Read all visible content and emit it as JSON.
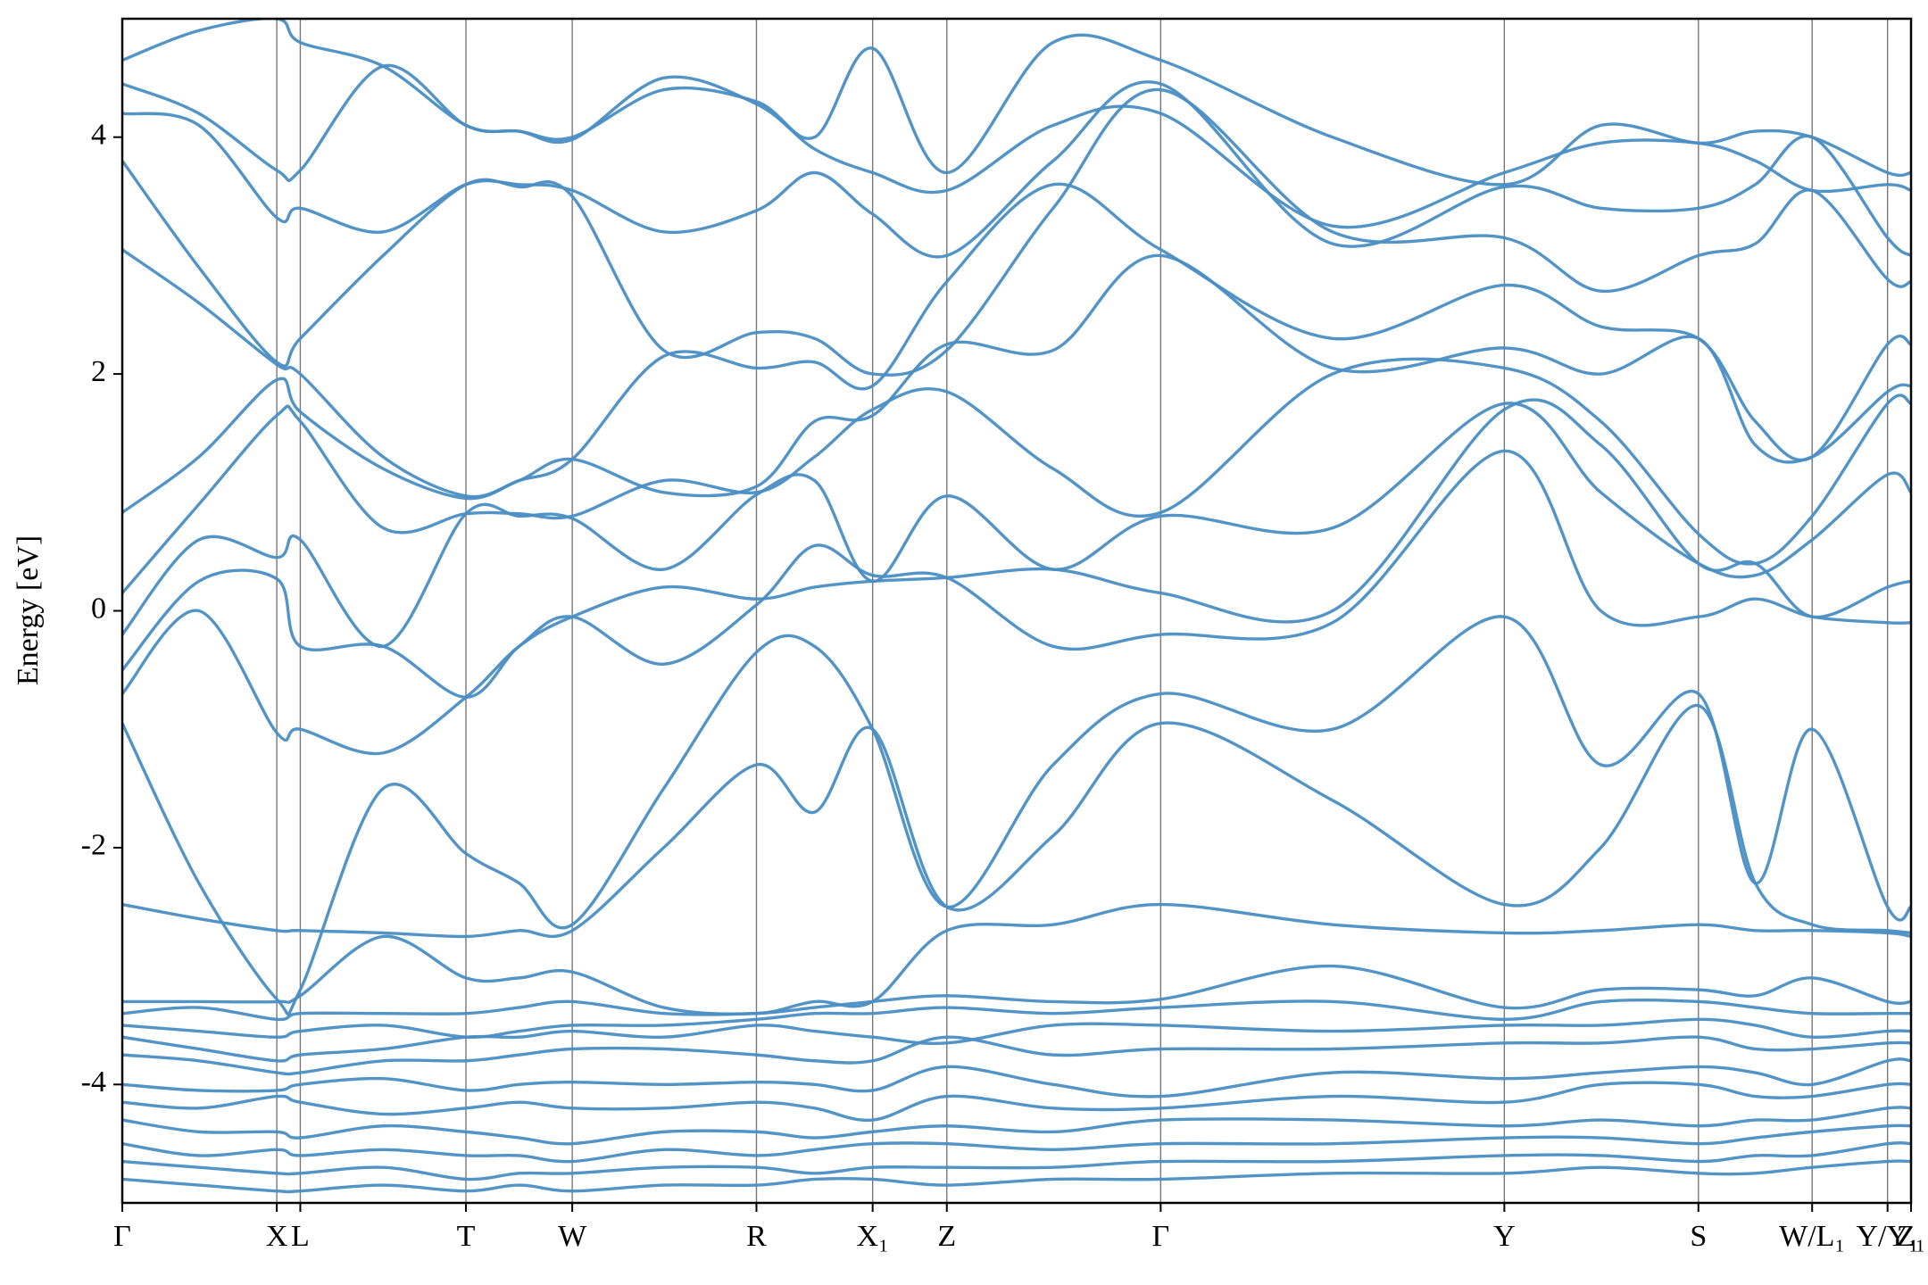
{
  "chart_data": {
    "type": "line",
    "ylabel": "Energy [eV]",
    "color": "#4a8ec4",
    "x": [
      0,
      0.62,
      1.25,
      1.44,
      2.11,
      2.78,
      3.21,
      3.64,
      4.38,
      5.13,
      5.6,
      6.07,
      6.67,
      7.53,
      8.4,
      9.79,
      11.18,
      11.96,
      12.75,
      13.21,
      13.67,
      14.28,
      14.47
    ],
    "xlim": [
      0,
      14.47
    ],
    "xticks": [
      {
        "value": 0,
        "label": "Γ"
      },
      {
        "value": 1.25,
        "label": "X"
      },
      {
        "value": 1.44,
        "label": "L"
      },
      {
        "value": 2.78,
        "label": "T"
      },
      {
        "value": 3.64,
        "label": "W"
      },
      {
        "value": 5.13,
        "label": "R"
      },
      {
        "value": 6.07,
        "label": "X₁"
      },
      {
        "value": 6.67,
        "label": "Z"
      },
      {
        "value": 8.4,
        "label": "Γ"
      },
      {
        "value": 11.18,
        "label": "Y"
      },
      {
        "value": 12.75,
        "label": "S"
      },
      {
        "value": 13.67,
        "label": "W/L₁"
      },
      {
        "value": 14.28,
        "label": "Y/Y₁"
      },
      {
        "value": 14.47,
        "label": "Z₁"
      }
    ],
    "ylim": [
      -5,
      5
    ],
    "yticks": [
      -4,
      -2,
      0,
      2,
      4
    ],
    "series": [
      {
        "values": [
          4.65,
          4.9,
          5.0,
          4.8,
          4.6,
          4.1,
          4.05,
          4.0,
          4.4,
          4.3,
          4.0,
          4.75,
          3.7,
          4.8,
          4.65,
          4.0,
          3.6,
          4.1,
          3.95,
          4.05,
          4.0,
          3.7,
          3.7
        ]
      },
      {
        "values": [
          4.45,
          4.2,
          3.72,
          3.72,
          4.6,
          4.1,
          4.05,
          3.98,
          4.5,
          4.28,
          3.9,
          3.7,
          3.55,
          4.1,
          4.2,
          3.25,
          3.7,
          3.95,
          3.95,
          3.8,
          3.55,
          3.6,
          3.55
        ]
      },
      {
        "values": [
          4.2,
          4.1,
          3.32,
          3.4,
          3.2,
          3.6,
          3.6,
          3.55,
          3.2,
          3.38,
          3.7,
          3.35,
          3.0,
          3.8,
          4.45,
          3.1,
          3.58,
          3.4,
          3.4,
          3.6,
          4.0,
          3.15,
          3.0
        ]
      },
      {
        "values": [
          3.8,
          2.9,
          2.1,
          2.3,
          3.0,
          3.6,
          3.58,
          3.5,
          2.2,
          2.35,
          2.3,
          2.0,
          2.2,
          3.4,
          4.4,
          3.2,
          3.15,
          2.7,
          3.0,
          3.1,
          3.55,
          2.8,
          2.78
        ]
      },
      {
        "values": [
          3.05,
          2.6,
          2.08,
          2.0,
          1.3,
          0.97,
          1.1,
          1.28,
          2.15,
          2.05,
          2.1,
          1.9,
          2.78,
          3.6,
          3.05,
          2.3,
          2.75,
          2.4,
          2.3,
          1.6,
          1.3,
          2.25,
          2.25
        ]
      },
      {
        "values": [
          0.83,
          1.3,
          1.95,
          1.68,
          1.2,
          0.95,
          1.1,
          1.28,
          1.0,
          1.05,
          1.6,
          1.65,
          2.25,
          2.2,
          3.0,
          2.05,
          2.22,
          2.0,
          2.3,
          1.4,
          1.3,
          1.85,
          1.9
        ]
      },
      {
        "values": [
          0.15,
          0.9,
          1.65,
          1.6,
          0.7,
          0.82,
          0.82,
          0.8,
          1.1,
          1.0,
          1.3,
          1.7,
          1.85,
          1.2,
          0.83,
          2.0,
          2.05,
          1.6,
          0.65,
          0.4,
          0.8,
          1.75,
          1.75
        ]
      },
      {
        "values": [
          -0.2,
          0.6,
          0.45,
          0.6,
          -0.3,
          0.82,
          0.8,
          0.78,
          0.35,
          0.98,
          1.1,
          0.25,
          0.97,
          0.35,
          0.8,
          0.7,
          1.75,
          1.0,
          0.4,
          0.3,
          0.6,
          1.15,
          1.0
        ]
      },
      {
        "values": [
          -0.5,
          0.25,
          0.27,
          -0.3,
          -0.3,
          -0.73,
          -0.3,
          -0.05,
          0.2,
          0.1,
          0.2,
          0.25,
          0.28,
          0.35,
          0.15,
          0.0,
          1.7,
          1.4,
          0.4,
          0.4,
          -0.05,
          0.2,
          0.25
        ]
      },
      {
        "values": [
          -0.7,
          0.0,
          -1.03,
          -1.0,
          -1.2,
          -0.73,
          -0.3,
          -0.05,
          -0.45,
          0.05,
          0.55,
          0.3,
          0.28,
          -0.3,
          -0.2,
          -0.1,
          1.35,
          0.0,
          -0.05,
          0.1,
          -0.05,
          -0.1,
          -0.1
        ]
      },
      {
        "values": [
          -0.95,
          -2.3,
          -3.28,
          -3.2,
          -1.5,
          -2.05,
          -2.3,
          -2.65,
          -1.5,
          -0.35,
          -0.3,
          -1.0,
          -2.5,
          -1.3,
          -0.7,
          -1.0,
          -0.05,
          -1.3,
          -0.7,
          -2.3,
          -1.0,
          -2.5,
          -2.5
        ]
      },
      {
        "values": [
          -2.48,
          -2.6,
          -2.7,
          -2.7,
          -2.72,
          -2.75,
          -2.7,
          -2.7,
          -2.0,
          -1.3,
          -1.7,
          -1.0,
          -2.5,
          -1.9,
          -0.95,
          -1.6,
          -2.48,
          -2.0,
          -0.8,
          -2.3,
          -2.65,
          -2.7,
          -2.72
        ]
      },
      {
        "values": [
          -3.3,
          -3.3,
          -3.3,
          -3.25,
          -2.75,
          -3.1,
          -3.1,
          -3.05,
          -3.35,
          -3.4,
          -3.3,
          -3.3,
          -2.7,
          -2.65,
          -2.48,
          -2.65,
          -2.72,
          -2.7,
          -2.65,
          -2.7,
          -2.7,
          -2.72,
          -2.75
        ]
      },
      {
        "values": [
          -3.4,
          -3.35,
          -3.45,
          -3.4,
          -3.4,
          -3.4,
          -3.35,
          -3.3,
          -3.4,
          -3.4,
          -3.35,
          -3.3,
          -3.25,
          -3.3,
          -3.28,
          -3.0,
          -3.35,
          -3.2,
          -3.2,
          -3.25,
          -3.1,
          -3.3,
          -3.3
        ]
      },
      {
        "values": [
          -3.5,
          -3.55,
          -3.6,
          -3.55,
          -3.5,
          -3.6,
          -3.55,
          -3.5,
          -3.5,
          -3.45,
          -3.4,
          -3.4,
          -3.35,
          -3.4,
          -3.35,
          -3.3,
          -3.45,
          -3.3,
          -3.3,
          -3.35,
          -3.4,
          -3.4,
          -3.4
        ]
      },
      {
        "values": [
          -3.6,
          -3.7,
          -3.8,
          -3.75,
          -3.7,
          -3.6,
          -3.6,
          -3.55,
          -3.6,
          -3.5,
          -3.55,
          -3.6,
          -3.65,
          -3.5,
          -3.5,
          -3.55,
          -3.5,
          -3.5,
          -3.45,
          -3.5,
          -3.6,
          -3.55,
          -3.55
        ]
      },
      {
        "values": [
          -3.75,
          -3.8,
          -3.9,
          -3.9,
          -3.8,
          -3.8,
          -3.75,
          -3.7,
          -3.7,
          -3.75,
          -3.8,
          -3.8,
          -3.6,
          -3.75,
          -3.7,
          -3.7,
          -3.65,
          -3.65,
          -3.6,
          -3.7,
          -3.7,
          -3.65,
          -3.65
        ]
      },
      {
        "values": [
          -4.0,
          -4.05,
          -4.05,
          -4.0,
          -3.95,
          -4.05,
          -4.0,
          -3.98,
          -4.0,
          -3.98,
          -4.0,
          -4.05,
          -3.85,
          -4.0,
          -4.1,
          -3.9,
          -3.95,
          -3.9,
          -3.85,
          -3.9,
          -4.0,
          -3.8,
          -3.8
        ]
      },
      {
        "values": [
          -4.15,
          -4.2,
          -4.1,
          -4.15,
          -4.25,
          -4.2,
          -4.15,
          -4.2,
          -4.2,
          -4.15,
          -4.2,
          -4.3,
          -4.1,
          -4.2,
          -4.2,
          -4.1,
          -4.15,
          -4.0,
          -4.0,
          -4.1,
          -4.1,
          -4.0,
          -4.0
        ]
      },
      {
        "values": [
          -4.3,
          -4.4,
          -4.4,
          -4.45,
          -4.35,
          -4.4,
          -4.45,
          -4.5,
          -4.4,
          -4.4,
          -4.45,
          -4.4,
          -4.35,
          -4.4,
          -4.3,
          -4.3,
          -4.35,
          -4.3,
          -4.35,
          -4.3,
          -4.3,
          -4.2,
          -4.2
        ]
      },
      {
        "values": [
          -4.5,
          -4.6,
          -4.55,
          -4.6,
          -4.55,
          -4.6,
          -4.6,
          -4.65,
          -4.55,
          -4.6,
          -4.55,
          -4.5,
          -4.5,
          -4.55,
          -4.5,
          -4.5,
          -4.45,
          -4.45,
          -4.5,
          -4.45,
          -4.4,
          -4.35,
          -4.35
        ]
      },
      {
        "values": [
          -4.65,
          -4.7,
          -4.75,
          -4.75,
          -4.7,
          -4.8,
          -4.75,
          -4.75,
          -4.7,
          -4.7,
          -4.75,
          -4.7,
          -4.7,
          -4.7,
          -4.65,
          -4.65,
          -4.6,
          -4.6,
          -4.65,
          -4.6,
          -4.6,
          -4.5,
          -4.5
        ]
      },
      {
        "values": [
          -4.8,
          -4.85,
          -4.9,
          -4.9,
          -4.85,
          -4.9,
          -4.85,
          -4.9,
          -4.85,
          -4.85,
          -4.8,
          -4.8,
          -4.85,
          -4.8,
          -4.8,
          -4.75,
          -4.75,
          -4.7,
          -4.75,
          -4.75,
          -4.7,
          -4.65,
          -4.65
        ]
      }
    ]
  }
}
